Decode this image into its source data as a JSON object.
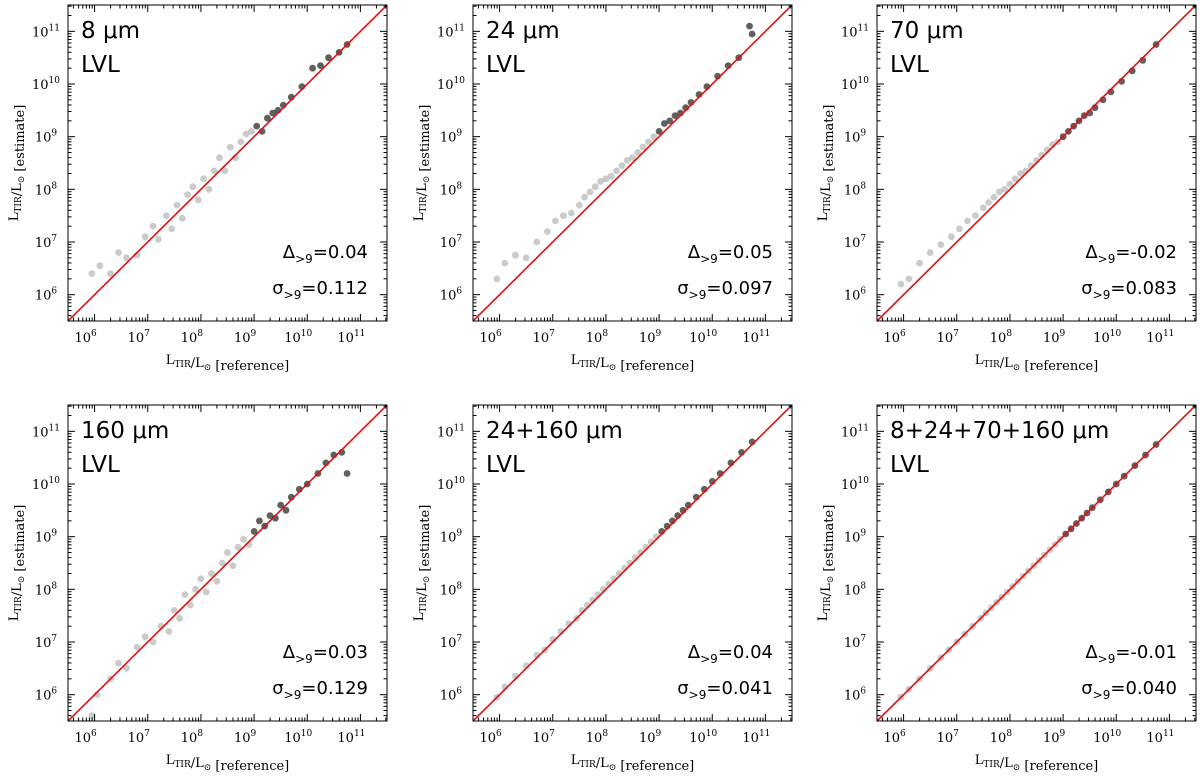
{
  "chart_data": [
    {
      "type": "scatter",
      "title_line1": "8 μm",
      "title_line2": "LVL",
      "xlabel": "L_TIR/L_⊙ [reference]",
      "ylabel": "L_TIR/L_⊙ [estimate]",
      "xscale": "log",
      "yscale": "log",
      "xlim_log10": [
        5.5,
        11.5
      ],
      "ylim_log10": [
        5.5,
        11.5
      ],
      "reference_line": "1:1",
      "reference_line_color": "#e01010",
      "stats": {
        "delta_label": "Δ",
        "sigma_label": "σ",
        "subscript": ">9",
        "delta": "0.04",
        "sigma": "0.112"
      },
      "points": [
        [
          5.95,
          6.4
        ],
        [
          6.1,
          6.55
        ],
        [
          6.3,
          6.4
        ],
        [
          6.45,
          6.8
        ],
        [
          6.6,
          6.7
        ],
        [
          6.8,
          6.75
        ],
        [
          6.95,
          7.1
        ],
        [
          7.1,
          7.3
        ],
        [
          7.2,
          7.05
        ],
        [
          7.35,
          7.5
        ],
        [
          7.45,
          7.25
        ],
        [
          7.55,
          7.7
        ],
        [
          7.65,
          7.45
        ],
        [
          7.75,
          7.9
        ],
        [
          7.85,
          8.05
        ],
        [
          7.95,
          7.8
        ],
        [
          8.05,
          8.2
        ],
        [
          8.15,
          8.0
        ],
        [
          8.25,
          8.35
        ],
        [
          8.35,
          8.6
        ],
        [
          8.45,
          8.35
        ],
        [
          8.55,
          8.8
        ],
        [
          8.65,
          8.6
        ],
        [
          8.75,
          8.9
        ],
        [
          8.85,
          9.05
        ],
        [
          8.95,
          9.1
        ],
        [
          9.05,
          9.2
        ],
        [
          9.15,
          9.1
        ],
        [
          9.25,
          9.35
        ],
        [
          9.35,
          9.45
        ],
        [
          9.45,
          9.5
        ],
        [
          9.55,
          9.6
        ],
        [
          9.7,
          9.75
        ],
        [
          9.9,
          9.95
        ],
        [
          10.1,
          10.3
        ],
        [
          10.25,
          10.35
        ],
        [
          10.4,
          10.5
        ],
        [
          10.6,
          10.6
        ],
        [
          10.75,
          10.75
        ]
      ]
    },
    {
      "type": "scatter",
      "title_line1": "24 μm",
      "title_line2": "LVL",
      "xlabel": "L_TIR/L_⊙ [reference]",
      "ylabel": "L_TIR/L_⊙ [estimate]",
      "xscale": "log",
      "yscale": "log",
      "xlim_log10": [
        5.5,
        11.5
      ],
      "ylim_log10": [
        5.5,
        11.5
      ],
      "reference_line": "1:1",
      "reference_line_color": "#e01010",
      "stats": {
        "delta_label": "Δ",
        "sigma_label": "σ",
        "subscript": ">9",
        "delta": "0.05",
        "sigma": "0.097"
      },
      "points": [
        [
          5.95,
          6.3
        ],
        [
          6.1,
          6.6
        ],
        [
          6.3,
          6.75
        ],
        [
          6.5,
          6.7
        ],
        [
          6.7,
          7.0
        ],
        [
          6.9,
          7.2
        ],
        [
          7.05,
          7.4
        ],
        [
          7.2,
          7.5
        ],
        [
          7.35,
          7.55
        ],
        [
          7.5,
          7.7
        ],
        [
          7.6,
          7.85
        ],
        [
          7.7,
          7.95
        ],
        [
          7.8,
          8.05
        ],
        [
          7.9,
          8.15
        ],
        [
          8.0,
          8.2
        ],
        [
          8.1,
          8.25
        ],
        [
          8.2,
          8.35
        ],
        [
          8.3,
          8.45
        ],
        [
          8.4,
          8.55
        ],
        [
          8.5,
          8.6
        ],
        [
          8.6,
          8.7
        ],
        [
          8.7,
          8.8
        ],
        [
          8.8,
          8.9
        ],
        [
          8.9,
          9.0
        ],
        [
          9.0,
          9.1
        ],
        [
          9.1,
          9.25
        ],
        [
          9.2,
          9.3
        ],
        [
          9.3,
          9.4
        ],
        [
          9.4,
          9.45
        ],
        [
          9.5,
          9.55
        ],
        [
          9.6,
          9.65
        ],
        [
          9.75,
          9.8
        ],
        [
          9.9,
          9.95
        ],
        [
          10.1,
          10.15
        ],
        [
          10.3,
          10.35
        ],
        [
          10.5,
          10.5
        ],
        [
          10.7,
          11.1
        ],
        [
          10.75,
          10.95
        ]
      ]
    },
    {
      "type": "scatter",
      "title_line1": "70 μm",
      "title_line2": "LVL",
      "xlabel": "L_TIR/L_⊙ [reference]",
      "ylabel": "L_TIR/L_⊙ [estimate]",
      "xscale": "log",
      "yscale": "log",
      "xlim_log10": [
        5.5,
        11.5
      ],
      "ylim_log10": [
        5.5,
        11.5
      ],
      "reference_line": "1:1",
      "reference_line_color": "#e01010",
      "stats": {
        "delta_label": "Δ",
        "sigma_label": "σ",
        "subscript": ">9",
        "delta": "-0.02",
        "sigma": "0.083"
      },
      "points": [
        [
          5.95,
          6.2
        ],
        [
          6.1,
          6.3
        ],
        [
          6.3,
          6.6
        ],
        [
          6.5,
          6.8
        ],
        [
          6.7,
          6.95
        ],
        [
          6.9,
          7.1
        ],
        [
          7.05,
          7.25
        ],
        [
          7.2,
          7.4
        ],
        [
          7.35,
          7.5
        ],
        [
          7.5,
          7.65
        ],
        [
          7.6,
          7.75
        ],
        [
          7.7,
          7.85
        ],
        [
          7.8,
          7.95
        ],
        [
          7.9,
          8.0
        ],
        [
          8.0,
          8.1
        ],
        [
          8.1,
          8.2
        ],
        [
          8.2,
          8.3
        ],
        [
          8.3,
          8.35
        ],
        [
          8.4,
          8.45
        ],
        [
          8.5,
          8.55
        ],
        [
          8.6,
          8.65
        ],
        [
          8.7,
          8.75
        ],
        [
          8.8,
          8.85
        ],
        [
          8.9,
          8.9
        ],
        [
          9.0,
          9.0
        ],
        [
          9.1,
          9.1
        ],
        [
          9.2,
          9.2
        ],
        [
          9.3,
          9.3
        ],
        [
          9.4,
          9.4
        ],
        [
          9.5,
          9.45
        ],
        [
          9.6,
          9.55
        ],
        [
          9.75,
          9.7
        ],
        [
          9.9,
          9.85
        ],
        [
          10.1,
          10.05
        ],
        [
          10.3,
          10.25
        ],
        [
          10.5,
          10.45
        ],
        [
          10.75,
          10.75
        ]
      ]
    },
    {
      "type": "scatter",
      "title_line1": "160 μm",
      "title_line2": "LVL",
      "xlabel": "L_TIR/L_⊙ [reference]",
      "ylabel": "L_TIR/L_⊙ [estimate]",
      "xscale": "log",
      "yscale": "log",
      "xlim_log10": [
        5.5,
        11.5
      ],
      "ylim_log10": [
        5.5,
        11.5
      ],
      "reference_line": "1:1",
      "reference_line_color": "#e01010",
      "stats": {
        "delta_label": "Δ",
        "sigma_label": "σ",
        "subscript": ">9",
        "delta": "0.03",
        "sigma": "0.129"
      },
      "points": [
        [
          5.95,
          5.6
        ],
        [
          6.05,
          6.0
        ],
        [
          6.3,
          6.3
        ],
        [
          6.45,
          6.6
        ],
        [
          6.6,
          6.5
        ],
        [
          6.8,
          6.9
        ],
        [
          6.95,
          7.1
        ],
        [
          7.1,
          7.0
        ],
        [
          7.25,
          7.3
        ],
        [
          7.4,
          7.2
        ],
        [
          7.5,
          7.6
        ],
        [
          7.6,
          7.45
        ],
        [
          7.7,
          7.9
        ],
        [
          7.8,
          7.7
        ],
        [
          7.9,
          8.0
        ],
        [
          8.0,
          8.2
        ],
        [
          8.1,
          7.95
        ],
        [
          8.2,
          8.3
        ],
        [
          8.3,
          8.15
        ],
        [
          8.4,
          8.5
        ],
        [
          8.5,
          8.7
        ],
        [
          8.6,
          8.45
        ],
        [
          8.7,
          8.8
        ],
        [
          8.8,
          8.95
        ],
        [
          8.9,
          8.85
        ],
        [
          9.0,
          9.1
        ],
        [
          9.1,
          9.3
        ],
        [
          9.2,
          9.2
        ],
        [
          9.3,
          9.4
        ],
        [
          9.4,
          9.35
        ],
        [
          9.5,
          9.6
        ],
        [
          9.6,
          9.5
        ],
        [
          9.7,
          9.75
        ],
        [
          9.85,
          9.9
        ],
        [
          10.0,
          10.0
        ],
        [
          10.2,
          10.2
        ],
        [
          10.35,
          10.4
        ],
        [
          10.5,
          10.55
        ],
        [
          10.65,
          10.6
        ],
        [
          10.75,
          10.2
        ]
      ]
    },
    {
      "type": "scatter",
      "title_line1": "24+160 μm",
      "title_line2": "LVL",
      "xlabel": "L_TIR/L_⊙ [reference]",
      "ylabel": "L_TIR/L_⊙ [estimate]",
      "xscale": "log",
      "yscale": "log",
      "xlim_log10": [
        5.5,
        11.5
      ],
      "ylim_log10": [
        5.5,
        11.5
      ],
      "reference_line": "1:1",
      "reference_line_color": "#e01010",
      "stats": {
        "delta_label": "Δ",
        "sigma_label": "σ",
        "subscript": ">9",
        "delta": "0.04",
        "sigma": "0.041"
      },
      "points": [
        [
          5.95,
          5.95
        ],
        [
          6.1,
          6.15
        ],
        [
          6.3,
          6.35
        ],
        [
          6.5,
          6.55
        ],
        [
          6.7,
          6.75
        ],
        [
          6.85,
          6.85
        ],
        [
          7.0,
          7.05
        ],
        [
          7.15,
          7.2
        ],
        [
          7.3,
          7.35
        ],
        [
          7.45,
          7.45
        ],
        [
          7.55,
          7.6
        ],
        [
          7.65,
          7.7
        ],
        [
          7.75,
          7.8
        ],
        [
          7.85,
          7.9
        ],
        [
          7.95,
          8.0
        ],
        [
          8.05,
          8.1
        ],
        [
          8.15,
          8.2
        ],
        [
          8.25,
          8.3
        ],
        [
          8.35,
          8.4
        ],
        [
          8.45,
          8.5
        ],
        [
          8.55,
          8.6
        ],
        [
          8.65,
          8.7
        ],
        [
          8.75,
          8.8
        ],
        [
          8.85,
          8.9
        ],
        [
          8.95,
          9.0
        ],
        [
          9.05,
          9.1
        ],
        [
          9.15,
          9.2
        ],
        [
          9.25,
          9.3
        ],
        [
          9.35,
          9.4
        ],
        [
          9.45,
          9.5
        ],
        [
          9.55,
          9.6
        ],
        [
          9.7,
          9.75
        ],
        [
          9.85,
          9.9
        ],
        [
          10.0,
          10.05
        ],
        [
          10.15,
          10.2
        ],
        [
          10.35,
          10.4
        ],
        [
          10.55,
          10.6
        ],
        [
          10.75,
          10.8
        ]
      ]
    },
    {
      "type": "scatter",
      "title_line1": "8+24+70+160 μm",
      "title_line2": "LVL",
      "xlabel": "L_TIR/L_⊙ [reference]",
      "ylabel": "L_TIR/L_⊙ [estimate]",
      "xscale": "log",
      "yscale": "log",
      "xlim_log10": [
        5.5,
        11.5
      ],
      "ylim_log10": [
        5.5,
        11.5
      ],
      "reference_line": "1:1",
      "reference_line_color": "#e01010",
      "stats": {
        "delta_label": "Δ",
        "sigma_label": "σ",
        "subscript": ">9",
        "delta": "-0.01",
        "sigma": "0.040"
      },
      "points": [
        [
          5.95,
          5.95
        ],
        [
          6.1,
          6.1
        ],
        [
          6.3,
          6.3
        ],
        [
          6.5,
          6.5
        ],
        [
          6.7,
          6.7
        ],
        [
          6.85,
          6.85
        ],
        [
          7.0,
          7.0
        ],
        [
          7.15,
          7.15
        ],
        [
          7.3,
          7.3
        ],
        [
          7.45,
          7.45
        ],
        [
          7.55,
          7.55
        ],
        [
          7.65,
          7.65
        ],
        [
          7.75,
          7.75
        ],
        [
          7.85,
          7.85
        ],
        [
          7.95,
          7.95
        ],
        [
          8.05,
          8.05
        ],
        [
          8.15,
          8.15
        ],
        [
          8.25,
          8.25
        ],
        [
          8.35,
          8.35
        ],
        [
          8.45,
          8.45
        ],
        [
          8.55,
          8.55
        ],
        [
          8.65,
          8.65
        ],
        [
          8.75,
          8.75
        ],
        [
          8.85,
          8.85
        ],
        [
          8.95,
          8.95
        ],
        [
          9.05,
          9.05
        ],
        [
          9.15,
          9.15
        ],
        [
          9.25,
          9.25
        ],
        [
          9.35,
          9.35
        ],
        [
          9.45,
          9.45
        ],
        [
          9.55,
          9.55
        ],
        [
          9.7,
          9.7
        ],
        [
          9.85,
          9.85
        ],
        [
          10.0,
          10.0
        ],
        [
          10.15,
          10.15
        ],
        [
          10.35,
          10.35
        ],
        [
          10.55,
          10.55
        ],
        [
          10.75,
          10.75
        ]
      ]
    }
  ]
}
